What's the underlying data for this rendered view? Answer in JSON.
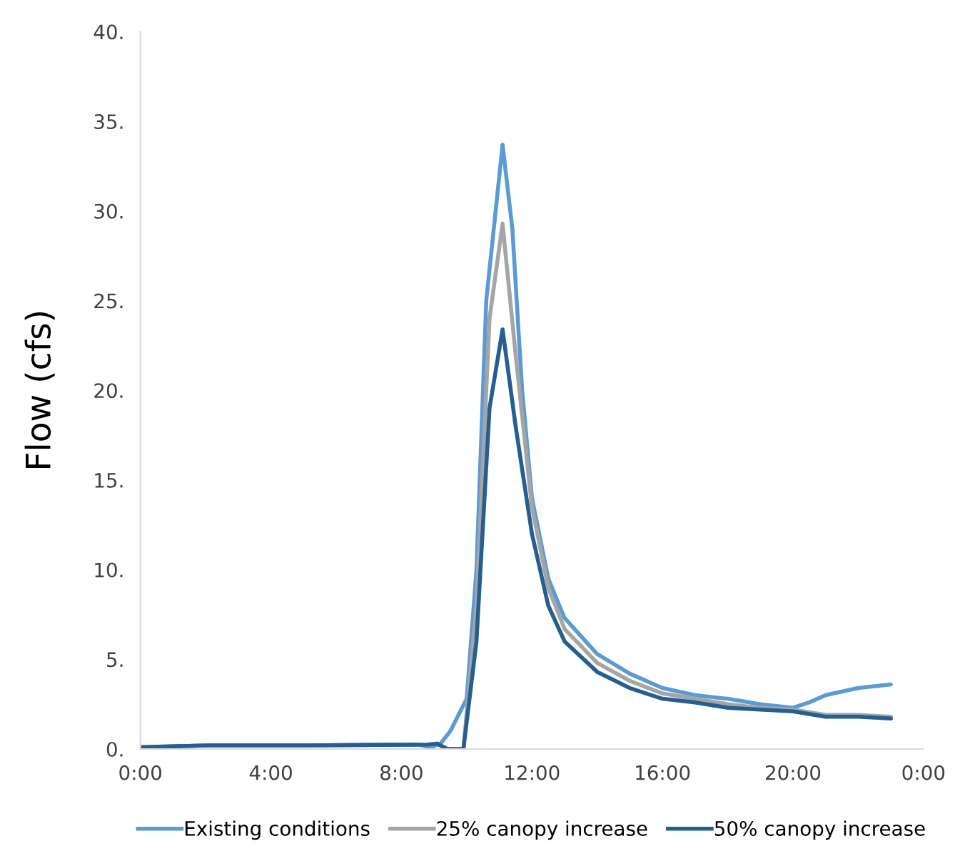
{
  "chart_data": {
    "type": "line",
    "ylabel": "Flow (cfs)",
    "xlim": [
      0,
      24
    ],
    "xticks": [
      {
        "value": 0,
        "label": "0:00"
      },
      {
        "value": 4,
        "label": "4:00"
      },
      {
        "value": 8,
        "label": "8:00"
      },
      {
        "value": 12,
        "label": "12:00"
      },
      {
        "value": 16,
        "label": "16:00"
      },
      {
        "value": 20,
        "label": "20:00"
      },
      {
        "value": 24,
        "label": "0:00"
      }
    ],
    "ylim": [
      0,
      40
    ],
    "yticks": [
      {
        "value": 0,
        "label": "0."
      },
      {
        "value": 5,
        "label": "5."
      },
      {
        "value": 10,
        "label": "10."
      },
      {
        "value": 15,
        "label": "15."
      },
      {
        "value": 20,
        "label": "20."
      },
      {
        "value": 25,
        "label": "25."
      },
      {
        "value": 30,
        "label": "30."
      },
      {
        "value": 35,
        "label": "35."
      },
      {
        "value": 40,
        "label": "40."
      }
    ],
    "grid": false,
    "legend": "bottom",
    "marker": "none",
    "line_style": "solid",
    "series": [
      {
        "name": "Existing conditions",
        "color": "#5b9bd5",
        "x": [
          0,
          2,
          5,
          8.5,
          8.9,
          9.2,
          9.5,
          10,
          10.3,
          10.6,
          11.1,
          11.4,
          11.7,
          12,
          12.5,
          13,
          14,
          15,
          16,
          17,
          18,
          19,
          20,
          20.5,
          21,
          22,
          23
        ],
        "values": [
          0.1,
          0.2,
          0.2,
          0.25,
          0.1,
          0.3,
          1.0,
          2.8,
          10,
          25,
          33.7,
          29,
          20,
          14,
          9.5,
          7.3,
          5.3,
          4.2,
          3.4,
          3.0,
          2.8,
          2.5,
          2.3,
          2.6,
          3.0,
          3.4,
          3.6
        ]
      },
      {
        "name": "25% canopy increase",
        "color": "#a5a5a5",
        "x": [
          8.8,
          9.1,
          9.4,
          9.9,
          10.3,
          10.7,
          11.1,
          11.5,
          12,
          12.5,
          13,
          14,
          15,
          16,
          17,
          18,
          19,
          20,
          21,
          22,
          23
        ],
        "values": [
          0.25,
          0.3,
          0.0,
          0.0,
          8,
          24,
          29.3,
          22,
          13.5,
          9,
          6.7,
          4.8,
          3.8,
          3.1,
          2.8,
          2.5,
          2.3,
          2.2,
          1.9,
          1.9,
          1.8
        ]
      },
      {
        "name": "50% canopy increase",
        "color": "#255e91",
        "x": [
          0,
          2,
          5,
          8.8,
          9.1,
          9.4,
          9.9,
          10.3,
          10.7,
          11.1,
          11.5,
          12,
          12.5,
          13,
          14,
          15,
          16,
          17,
          18,
          19,
          20,
          21,
          22,
          23
        ],
        "values": [
          0.1,
          0.2,
          0.2,
          0.25,
          0.3,
          0.0,
          0.0,
          6,
          19,
          23.4,
          18,
          12,
          8,
          6.0,
          4.3,
          3.4,
          2.8,
          2.6,
          2.3,
          2.2,
          2.1,
          1.8,
          1.8,
          1.7
        ]
      }
    ]
  }
}
